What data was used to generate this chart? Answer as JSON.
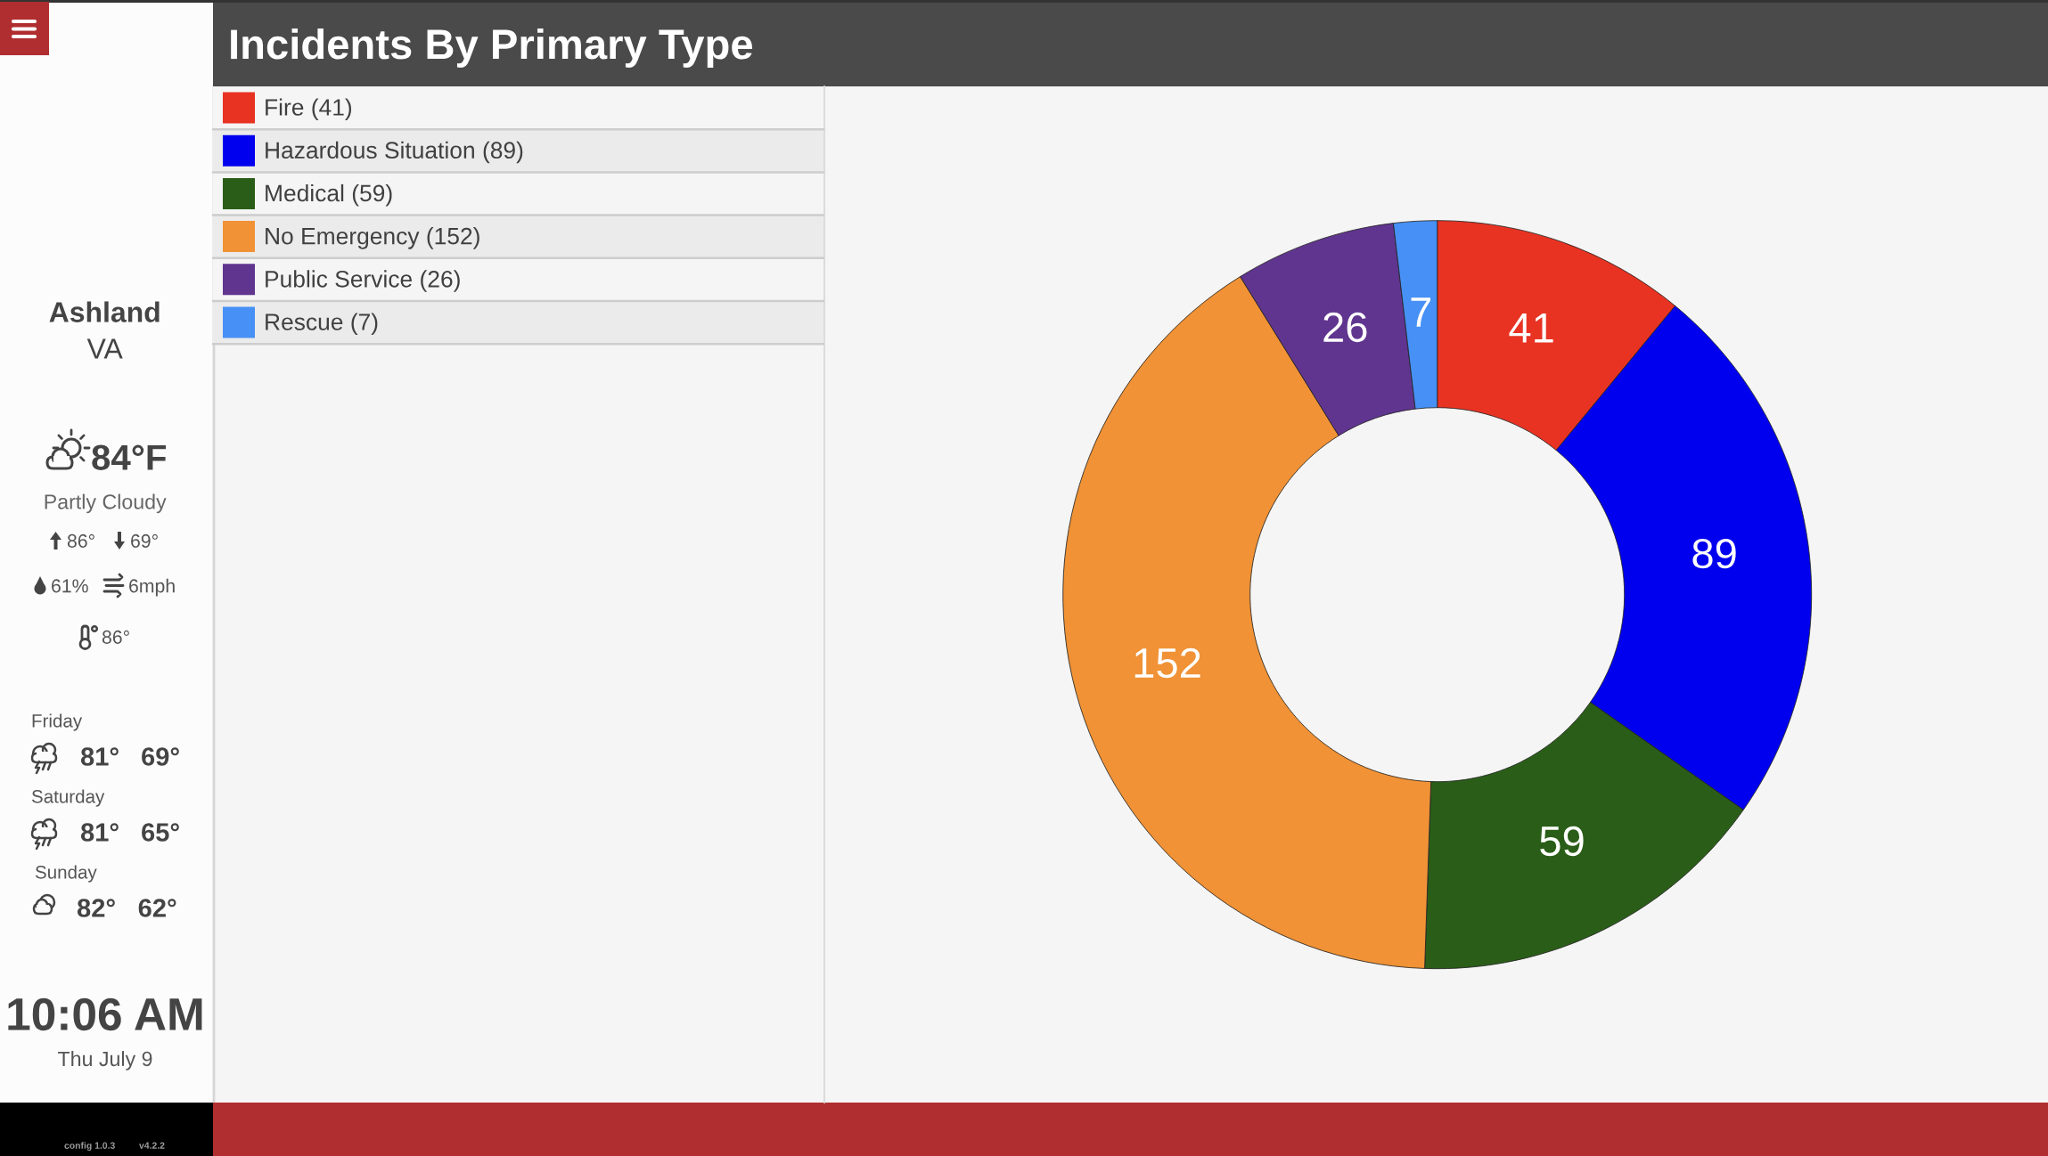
{
  "chart_data": [
    {
      "type": "other",
      "annotations": [
        "Ashland",
        "VA",
        "84°F",
        "Partly Cloudy",
        "86°",
        "69°",
        "61%",
        "6mph",
        "86°",
        "Friday",
        "81°",
        "69°",
        "Saturday",
        "81°",
        "65°",
        "Sunday",
        "82°",
        "62°",
        "10:06 AM",
        "Thu July 9",
        "config 1.0.3",
        "v4.2.2"
      ]
    },
    {
      "type": "donut",
      "title": "Incidents By Primary Type",
      "categories": [
        "Fire (41)",
        "Hazardous Situation (89)",
        "Medical (59)",
        "No Emergency (152)",
        "Public Service (26)",
        "Rescue (7)"
      ],
      "values": [
        41,
        89,
        59,
        152,
        26,
        7
      ],
      "colors": [
        "#e83323",
        "#0000ee",
        "#2a5e18",
        "#f09235",
        "#60358f",
        "#4790f5"
      ],
      "data_labels": true,
      "legend": "top left"
    }
  ]
}
